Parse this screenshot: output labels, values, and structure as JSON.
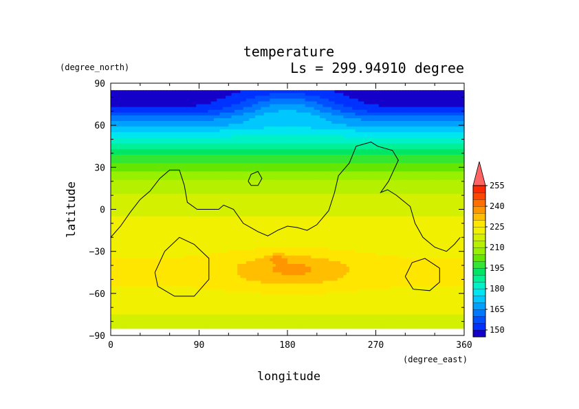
{
  "chart_data": {
    "type": "heatmap",
    "title": "temperature",
    "subtitle": "Ls = 299.94910 degree",
    "xlabel": "longitude",
    "ylabel": "latitude",
    "x_unit": "(degree_east)",
    "y_unit": "(degree_north)",
    "xlim": [
      0,
      360
    ],
    "ylim": [
      -90,
      90
    ],
    "x_ticks": [
      0,
      90,
      180,
      270,
      360
    ],
    "y_ticks": [
      90,
      60,
      30,
      0,
      -30,
      -60,
      -90
    ],
    "x_tick_labels": [
      "0",
      "90",
      "180",
      "270",
      "360"
    ],
    "y_tick_labels": [
      "90",
      "60",
      "30",
      "0",
      "−30",
      "−60",
      "−90"
    ],
    "colorbar": {
      "levels": [
        145,
        150,
        155,
        160,
        165,
        170,
        175,
        180,
        185,
        190,
        195,
        200,
        205,
        210,
        215,
        220,
        225,
        230,
        235,
        240,
        245,
        250,
        255,
        260
      ],
      "colors": [
        "#1400c8",
        "#0032ff",
        "#0050ff",
        "#0078ff",
        "#00a0ff",
        "#00c8ff",
        "#00e6f0",
        "#00f0c8",
        "#00f096",
        "#00e664",
        "#32e632",
        "#64e600",
        "#96f000",
        "#b4f000",
        "#d2f000",
        "#f0f000",
        "#ffe600",
        "#ffbe00",
        "#ff9600",
        "#ff6e00",
        "#ff4600",
        "#ff2800",
        "#ff6464"
      ],
      "tick_labels": [
        "150",
        "165",
        "180",
        "195",
        "210",
        "225",
        "240",
        "255"
      ],
      "extend": "max"
    },
    "fields": {
      "lat": [
        85,
        80,
        75,
        70,
        65,
        60,
        55,
        50,
        45,
        40,
        35,
        30,
        25,
        20,
        15,
        10,
        5,
        0,
        -5,
        -10,
        -15,
        -20,
        -25,
        -30,
        -35,
        -40,
        -45,
        -50,
        -55,
        -60,
        -65,
        -70,
        -75,
        -80,
        -85
      ],
      "zonal_mean": [
        147,
        147,
        148,
        153,
        162,
        168,
        176,
        182,
        188,
        193,
        198,
        203,
        207,
        210,
        213,
        215,
        217,
        219,
        220,
        221,
        221,
        222,
        223,
        224,
        225,
        226,
        226,
        226,
        225,
        224,
        222,
        221,
        220,
        219,
        218
      ],
      "warm_spot": {
        "lon": 180,
        "lat": 72,
        "amplitude": 18,
        "lon_width": 55,
        "lat_width": 12
      },
      "southern_max": {
        "lon": 185,
        "lat": -43,
        "amplitude": 10,
        "lon_width": 60,
        "lat_width": 12
      },
      "hot_spot": {
        "lon": 170,
        "lat": -35,
        "amplitude": 7,
        "lon_width": 10,
        "lat_width": 3
      }
    },
    "contours": [
      {
        "name": "continents",
        "points": [
          [
            0,
            -20
          ],
          [
            10,
            -12
          ],
          [
            20,
            -2
          ],
          [
            30,
            7
          ],
          [
            40,
            13
          ],
          [
            50,
            22
          ],
          [
            60,
            28
          ],
          [
            70,
            28
          ],
          [
            75,
            17
          ],
          [
            78,
            5
          ],
          [
            88,
            0
          ],
          [
            100,
            0
          ],
          [
            110,
            0
          ],
          [
            115,
            3
          ],
          [
            125,
            0
          ],
          [
            135,
            -10
          ],
          [
            150,
            -16
          ],
          [
            160,
            -19
          ],
          [
            170,
            -15
          ],
          [
            180,
            -12
          ],
          [
            190,
            -13
          ],
          [
            200,
            -15
          ],
          [
            210,
            -11
          ],
          [
            222,
            -1
          ],
          [
            228,
            12
          ],
          [
            232,
            24
          ],
          [
            243,
            33
          ],
          [
            250,
            45
          ],
          [
            265,
            48
          ],
          [
            272,
            45
          ],
          [
            287,
            42
          ],
          [
            293,
            35
          ],
          [
            283,
            20
          ],
          [
            275,
            12
          ],
          [
            282,
            14
          ],
          [
            291,
            10
          ],
          [
            305,
            2
          ],
          [
            310,
            -10
          ],
          [
            318,
            -20
          ],
          [
            330,
            -27
          ],
          [
            342,
            -30
          ],
          [
            350,
            -25
          ],
          [
            356,
            -20
          ]
        ]
      },
      {
        "name": "island",
        "points": [
          [
            140,
            20
          ],
          [
            143,
            25
          ],
          [
            150,
            27
          ],
          [
            154,
            22
          ],
          [
            150,
            17
          ],
          [
            143,
            17
          ],
          [
            140,
            20
          ]
        ]
      },
      {
        "name": "basin-west",
        "points": [
          [
            45,
            -45
          ],
          [
            55,
            -30
          ],
          [
            70,
            -20
          ],
          [
            85,
            -25
          ],
          [
            100,
            -35
          ],
          [
            100,
            -50
          ],
          [
            85,
            -62
          ],
          [
            65,
            -62
          ],
          [
            48,
            -55
          ],
          [
            45,
            -45
          ]
        ]
      },
      {
        "name": "basin-east",
        "points": [
          [
            300,
            -48
          ],
          [
            307,
            -38
          ],
          [
            320,
            -35
          ],
          [
            335,
            -42
          ],
          [
            335,
            -52
          ],
          [
            325,
            -58
          ],
          [
            308,
            -57
          ],
          [
            300,
            -48
          ]
        ]
      }
    ]
  }
}
